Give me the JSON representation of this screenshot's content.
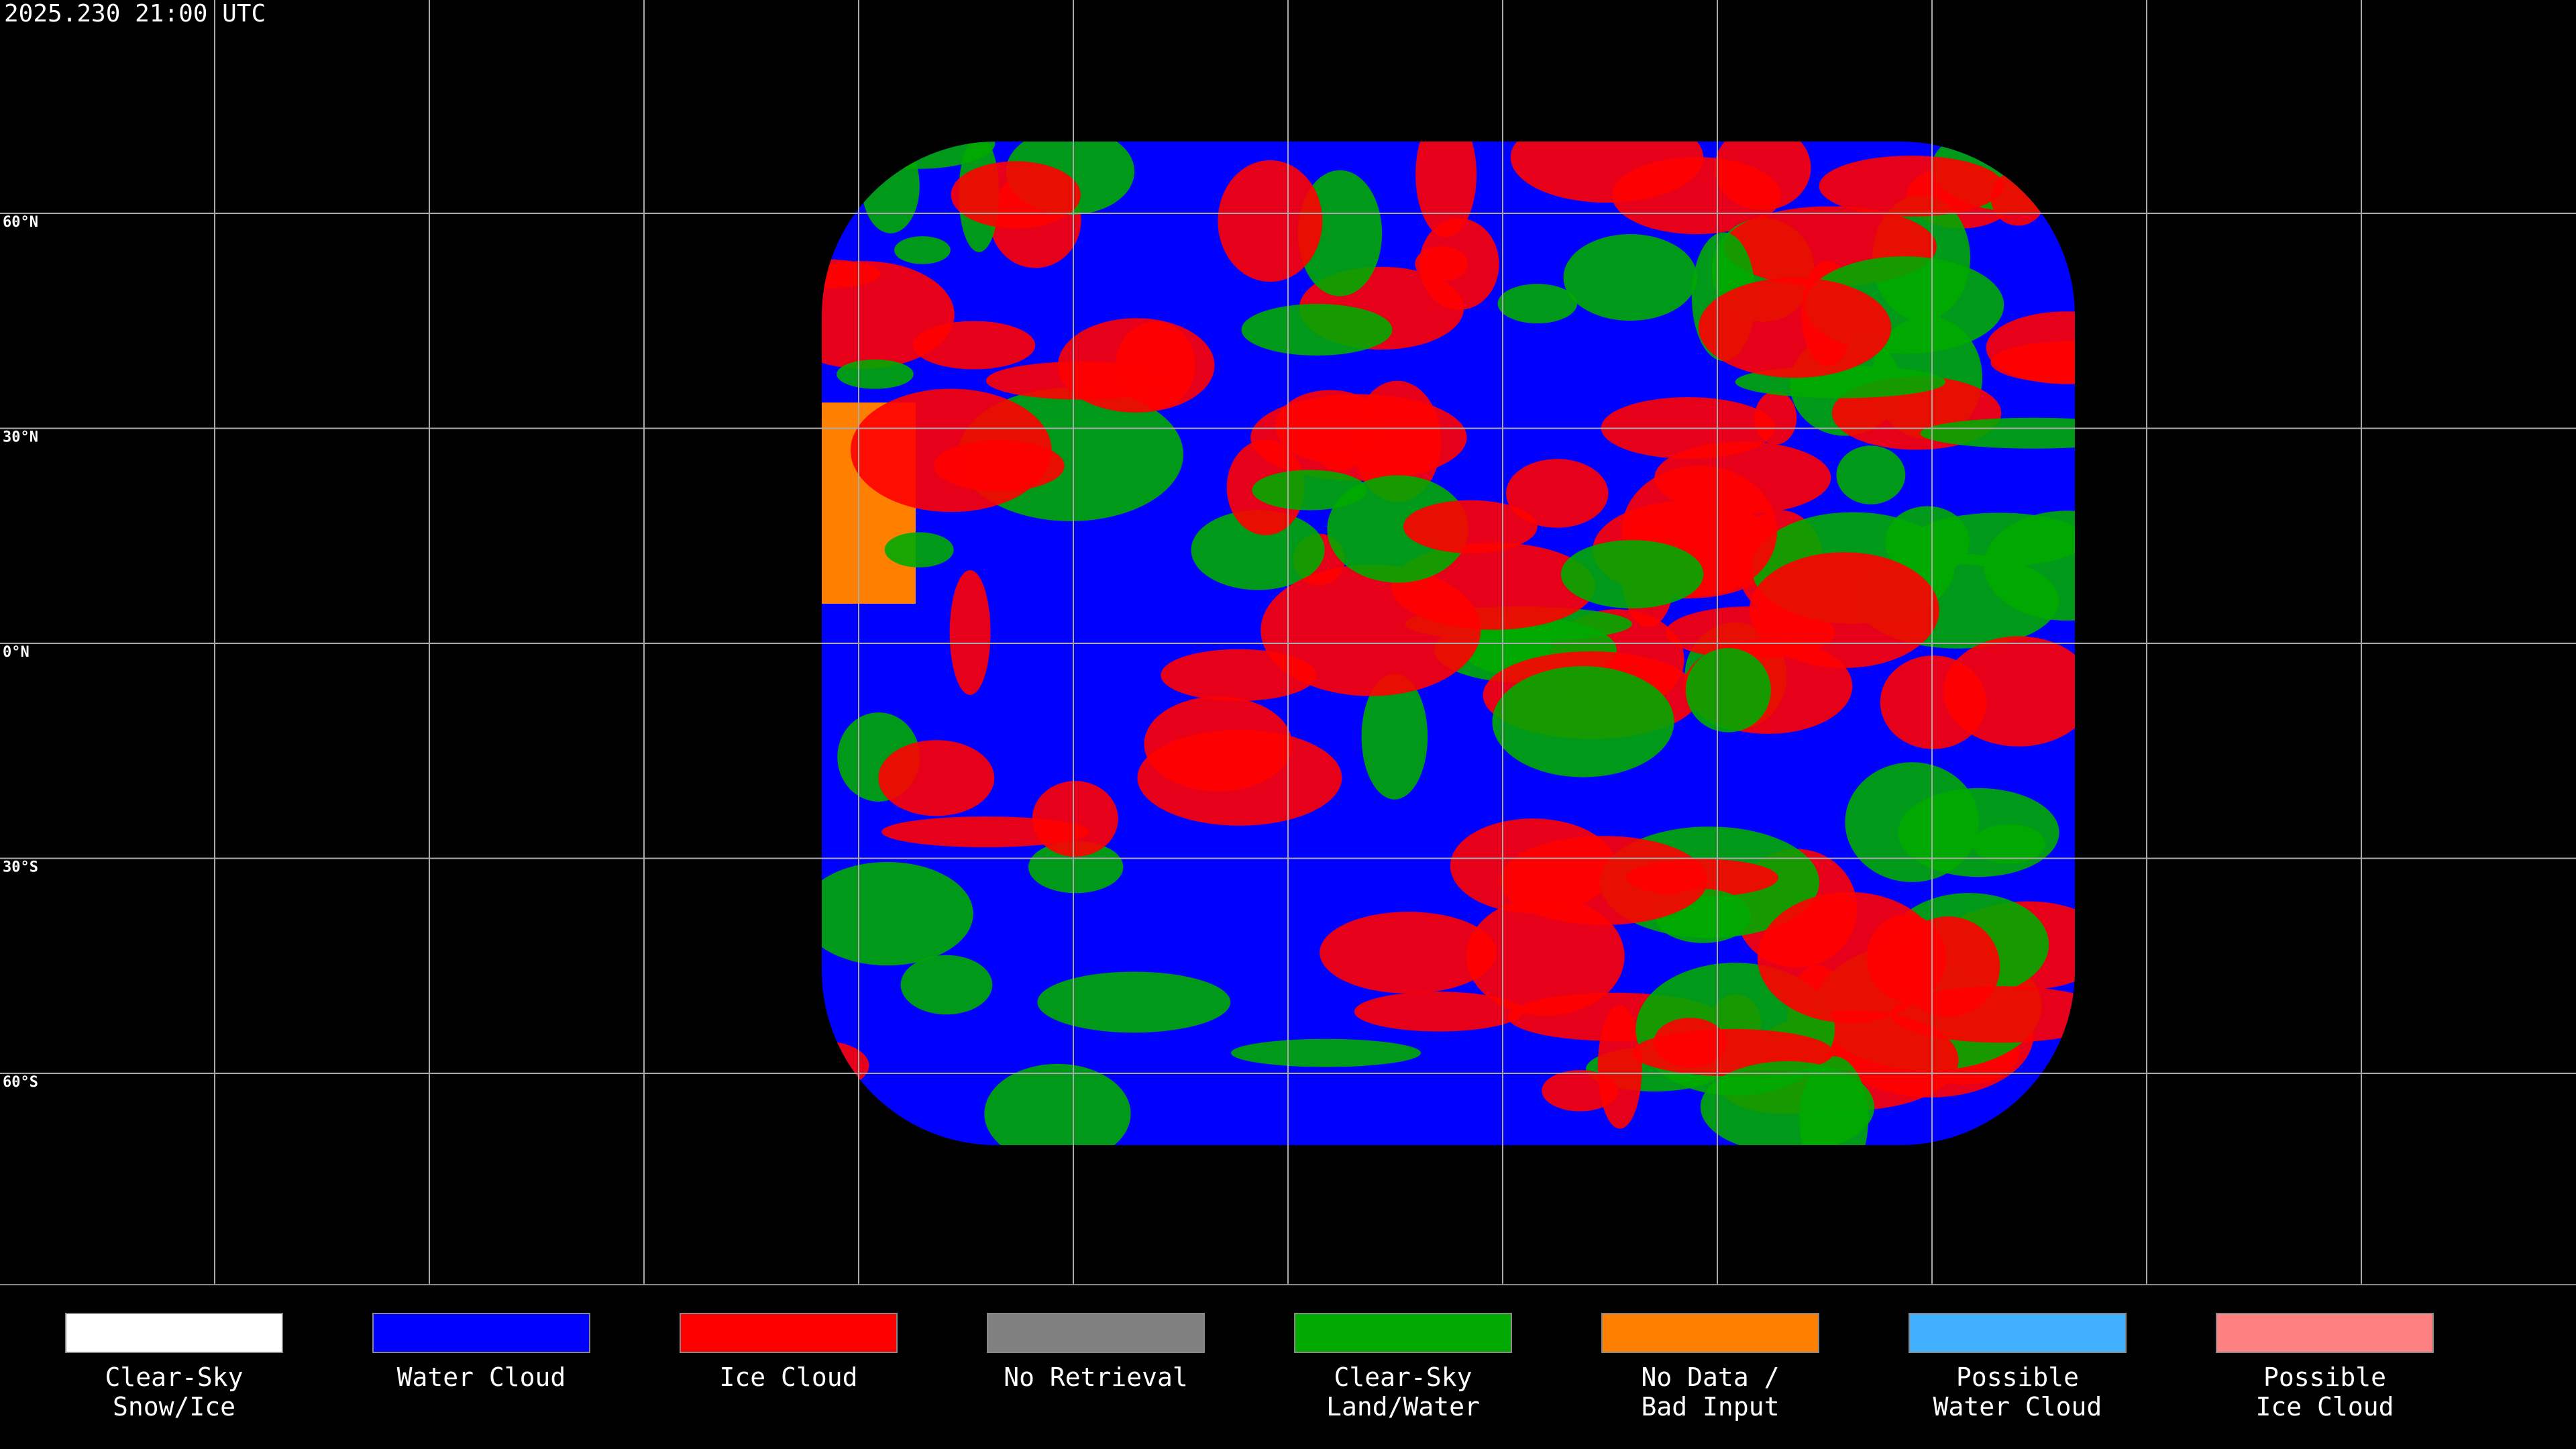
{
  "title": "2025.230 21:00 UTC",
  "latitude_labels": [
    "60°N",
    "30°N",
    "0°N",
    "30°S",
    "60°S"
  ],
  "legend": [
    {
      "label": [
        "Clear-Sky",
        "Snow/Ice"
      ],
      "color": "#ffffff"
    },
    {
      "label": [
        "Water Cloud"
      ],
      "color": "#0000ff"
    },
    {
      "label": [
        "Ice Cloud"
      ],
      "color": "#ff0000"
    },
    {
      "label": [
        "No Retrieval"
      ],
      "color": "#808080"
    },
    {
      "label": [
        "Clear-Sky",
        "Land/Water"
      ],
      "color": "#00aa00"
    },
    {
      "label": [
        "No Data /",
        "Bad Input"
      ],
      "color": "#ff8000"
    },
    {
      "label": [
        "Possible",
        "Water Cloud"
      ],
      "color": "#40b0ff"
    },
    {
      "label": [
        "Possible",
        "Ice Cloud"
      ],
      "color": "#ff8080"
    }
  ]
}
